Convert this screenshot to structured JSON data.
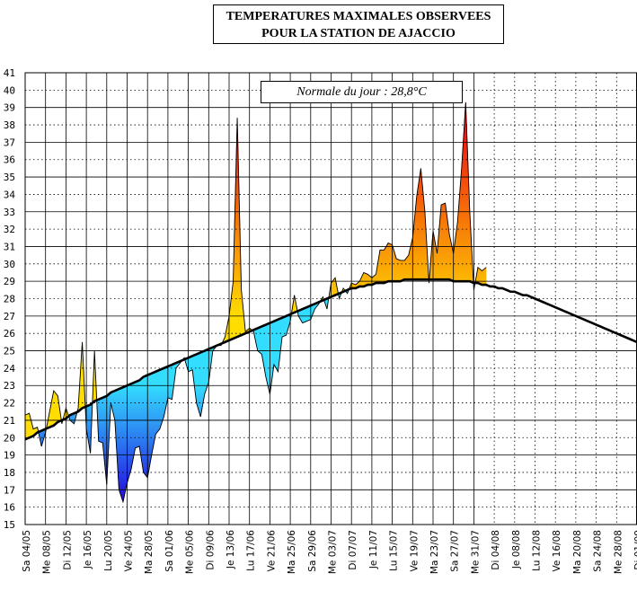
{
  "title": {
    "line1": "TEMPERATURES MAXIMALES OBSERVEES",
    "line2": "POUR LA STATION DE AJACCIO"
  },
  "normal_label": "Normale du jour : 28,8°C",
  "colors": {
    "cold_light": "#33ddff",
    "cold_dark": "#2200dd",
    "warm_light": "#ffdd00",
    "warm_dark": "#ee1111",
    "normal_line": "#000000",
    "grid": "#000000"
  },
  "chart_data": {
    "type": "area",
    "title": "TEMPERATURES MAXIMALES OBSERVEES POUR LA STATION DE AJACCIO",
    "xlabel": "",
    "ylabel": "",
    "ylim": [
      15,
      41
    ],
    "yticks": [
      15,
      16,
      17,
      18,
      19,
      20,
      21,
      22,
      23,
      24,
      25,
      26,
      27,
      28,
      29,
      30,
      31,
      32,
      33,
      34,
      35,
      36,
      37,
      38,
      39,
      40,
      41
    ],
    "start_date": "2005-05-04",
    "num_days": 151,
    "x_labels": [
      "Sa 04/05",
      "Me 08/05",
      "Di 12/05",
      "Je 16/05",
      "Lu 20/05",
      "Ve 24/05",
      "Ma 28/05",
      "Sa 01/06",
      "Me 05/06",
      "Di 09/06",
      "Je 13/06",
      "Lu 17/06",
      "Ve 21/06",
      "Ma 25/06",
      "Sa 29/06",
      "Me 03/07",
      "Di 07/07",
      "Je 11/07",
      "Lu 15/07",
      "Ve 19/07",
      "Ma 23/07",
      "Sa 27/07",
      "Me 31/07",
      "Di 04/08",
      "Je 08/08",
      "Lu 12/08",
      "Ve 16/08",
      "Ma 20/08",
      "Sa 24/08",
      "Me 28/08",
      "Di 01/09"
    ],
    "series": [
      {
        "name": "Température maximale observée",
        "values": [
          21.3,
          21.4,
          20.5,
          20.6,
          19.5,
          20.3,
          21.5,
          22.7,
          22.4,
          20.8,
          21.7,
          21.0,
          20.8,
          21.7,
          25.5,
          20.5,
          19.1,
          25.0,
          19.8,
          19.7,
          17.3,
          22.0,
          21.0,
          17.0,
          16.3,
          17.4,
          18.2,
          19.4,
          19.5,
          18.0,
          17.7,
          19.0,
          20.2,
          20.5,
          21.2,
          22.3,
          22.2,
          24.0,
          24.3,
          24.6,
          23.8,
          23.9,
          22.0,
          21.2,
          22.5,
          23.2,
          25.0,
          25.3,
          25.3,
          25.8,
          27.0,
          29.0,
          38.4,
          28.5,
          26.1,
          26.3,
          26.1,
          25.0,
          24.8,
          23.5,
          22.5,
          24.2,
          23.8,
          25.8,
          25.9,
          26.7,
          28.2,
          27.0,
          26.6,
          26.7,
          26.8,
          27.4,
          27.7,
          28.1,
          27.4,
          28.9,
          29.2,
          28.0,
          28.6,
          28.3,
          28.9,
          28.8,
          29.0,
          29.5,
          29.4,
          29.2,
          29.4,
          30.8,
          30.8,
          31.2,
          31.1,
          30.3,
          30.2,
          30.2,
          30.5,
          31.5,
          33.9,
          35.5,
          33.0,
          28.9,
          31.9,
          30.6,
          33.4,
          33.5,
          31.7,
          30.6,
          32.4,
          35.5,
          39.3,
          33.0,
          28.5,
          29.8,
          29.6,
          29.8
        ]
      },
      {
        "name": "Normale",
        "values": [
          19.9,
          20.0,
          20.1,
          20.3,
          20.4,
          20.5,
          20.6,
          20.7,
          20.9,
          21.0,
          21.1,
          21.3,
          21.4,
          21.5,
          21.7,
          21.8,
          21.9,
          22.1,
          22.2,
          22.3,
          22.4,
          22.6,
          22.7,
          22.8,
          22.9,
          23.0,
          23.1,
          23.2,
          23.3,
          23.5,
          23.6,
          23.7,
          23.8,
          23.9,
          24.0,
          24.1,
          24.2,
          24.3,
          24.4,
          24.5,
          24.6,
          24.7,
          24.8,
          24.9,
          25.0,
          25.1,
          25.2,
          25.3,
          25.4,
          25.5,
          25.6,
          25.7,
          25.8,
          25.9,
          26.0,
          26.1,
          26.2,
          26.3,
          26.4,
          26.5,
          26.6,
          26.7,
          26.8,
          26.9,
          27.0,
          27.1,
          27.2,
          27.3,
          27.4,
          27.5,
          27.6,
          27.7,
          27.8,
          27.9,
          28.0,
          28.1,
          28.2,
          28.3,
          28.4,
          28.5,
          28.6,
          28.6,
          28.7,
          28.7,
          28.8,
          28.8,
          28.9,
          28.9,
          28.9,
          29.0,
          29.0,
          29.0,
          29.0,
          29.1,
          29.1,
          29.1,
          29.1,
          29.1,
          29.1,
          29.1,
          29.1,
          29.1,
          29.1,
          29.1,
          29.1,
          29.0,
          29.0,
          29.0,
          29.0,
          29.0,
          28.9,
          28.9,
          28.8,
          28.8,
          28.7,
          28.7,
          28.6,
          28.6,
          28.5,
          28.4,
          28.4,
          28.3,
          28.2,
          28.2,
          28.1,
          28.0,
          27.9,
          27.8,
          27.7,
          27.6,
          27.5,
          27.4,
          27.3,
          27.2,
          27.1,
          27.0,
          26.9,
          26.8,
          26.7,
          26.6,
          26.5,
          26.4,
          26.3,
          26.2,
          26.1,
          26.0,
          25.9,
          25.8,
          25.7,
          25.6,
          25.5
        ]
      }
    ],
    "grid": true
  }
}
